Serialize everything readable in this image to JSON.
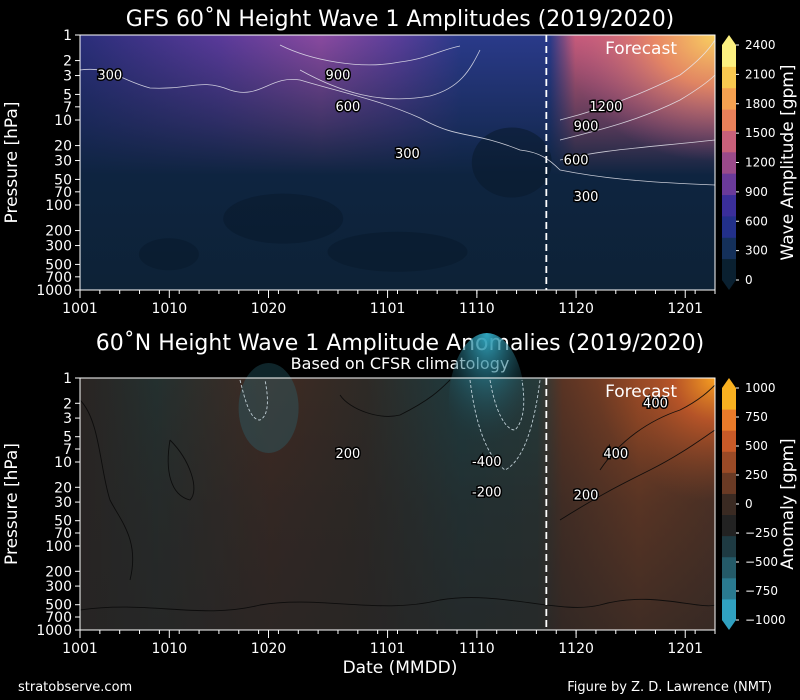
{
  "footer": {
    "left": "stratobserve.com",
    "right": "Figure by Z. D. Lawrence (NMT)"
  },
  "chart_data": [
    {
      "type": "heatmap",
      "title": "GFS 60˚N Height Wave 1 Amplitudes (2019/2020)",
      "ylabel": "Pressure [hPa]",
      "y_scale": "log",
      "y_inverted": true,
      "y_ticks": [
        "1",
        "2",
        "3",
        "5",
        "7",
        "10",
        "20",
        "30",
        "50",
        "70",
        "100",
        "200",
        "300",
        "500",
        "700",
        "1000"
      ],
      "x_ticks": [
        "1001",
        "1010",
        "1020",
        "1101",
        "1110",
        "1120",
        "1201"
      ],
      "forecast_label": "Forecast",
      "forecast_start": "1117",
      "colorbar": {
        "label": "Wave Amplitude [gpm]",
        "ticks": [
          "0",
          "300",
          "600",
          "900",
          "1200",
          "1500",
          "1800",
          "2100",
          "2400"
        ],
        "range": [
          0,
          2400
        ],
        "colors": [
          "#0a2030",
          "#14305a",
          "#22308a",
          "#3a2e9a",
          "#6a3a9a",
          "#9a4a8a",
          "#c8607a",
          "#e8805a",
          "#f4a050",
          "#f8c850",
          "#fcf080"
        ]
      },
      "contour_labels": [
        {
          "text": "300",
          "date": "1004",
          "p": 3
        },
        {
          "text": "900",
          "date": "1027",
          "p": 3
        },
        {
          "text": "600",
          "date": "1028",
          "p": 7
        },
        {
          "text": "300",
          "date": "1103",
          "p": 25
        },
        {
          "text": "1200",
          "date": "1123",
          "p": 7
        },
        {
          "text": "900",
          "date": "1121",
          "p": 12
        },
        {
          "text": "600",
          "date": "1120",
          "p": 30
        },
        {
          "text": "300",
          "date": "1121",
          "p": 80
        }
      ]
    },
    {
      "type": "heatmap",
      "title": "60˚N Height Wave 1 Amplitude Anomalies (2019/2020)",
      "subtitle": "Based on CFSR climatology",
      "xlabel": "Date (MMDD)",
      "ylabel": "Pressure [hPa]",
      "y_scale": "log",
      "y_inverted": true,
      "y_ticks": [
        "1",
        "2",
        "3",
        "5",
        "7",
        "10",
        "20",
        "30",
        "50",
        "70",
        "100",
        "200",
        "300",
        "500",
        "700",
        "1000"
      ],
      "x_ticks": [
        "1001",
        "1010",
        "1020",
        "1101",
        "1110",
        "1120",
        "1201"
      ],
      "forecast_label": "Forecast",
      "forecast_start": "1117",
      "colorbar": {
        "label": "Anomaly [gpm]",
        "ticks": [
          "−1000",
          "−750",
          "−500",
          "−250",
          "0",
          "250",
          "500",
          "750",
          "1000"
        ],
        "range": [
          -1000,
          1000
        ],
        "colors": [
          "#30a0c0",
          "#2a7a90",
          "#245a68",
          "#1e3a42",
          "#222222",
          "#3a2a22",
          "#6a3a24",
          "#9a4a26",
          "#c85a28",
          "#e87a2a",
          "#f8b020"
        ]
      },
      "contour_labels": [
        {
          "text": "200",
          "date": "1028",
          "p": 8
        },
        {
          "text": "-400",
          "date": "1111",
          "p": 10
        },
        {
          "text": "-200",
          "date": "1111",
          "p": 23
        },
        {
          "text": "400",
          "date": "1128",
          "p": 2
        },
        {
          "text": "400",
          "date": "1124",
          "p": 8
        },
        {
          "text": "200",
          "date": "1121",
          "p": 25
        }
      ]
    }
  ]
}
